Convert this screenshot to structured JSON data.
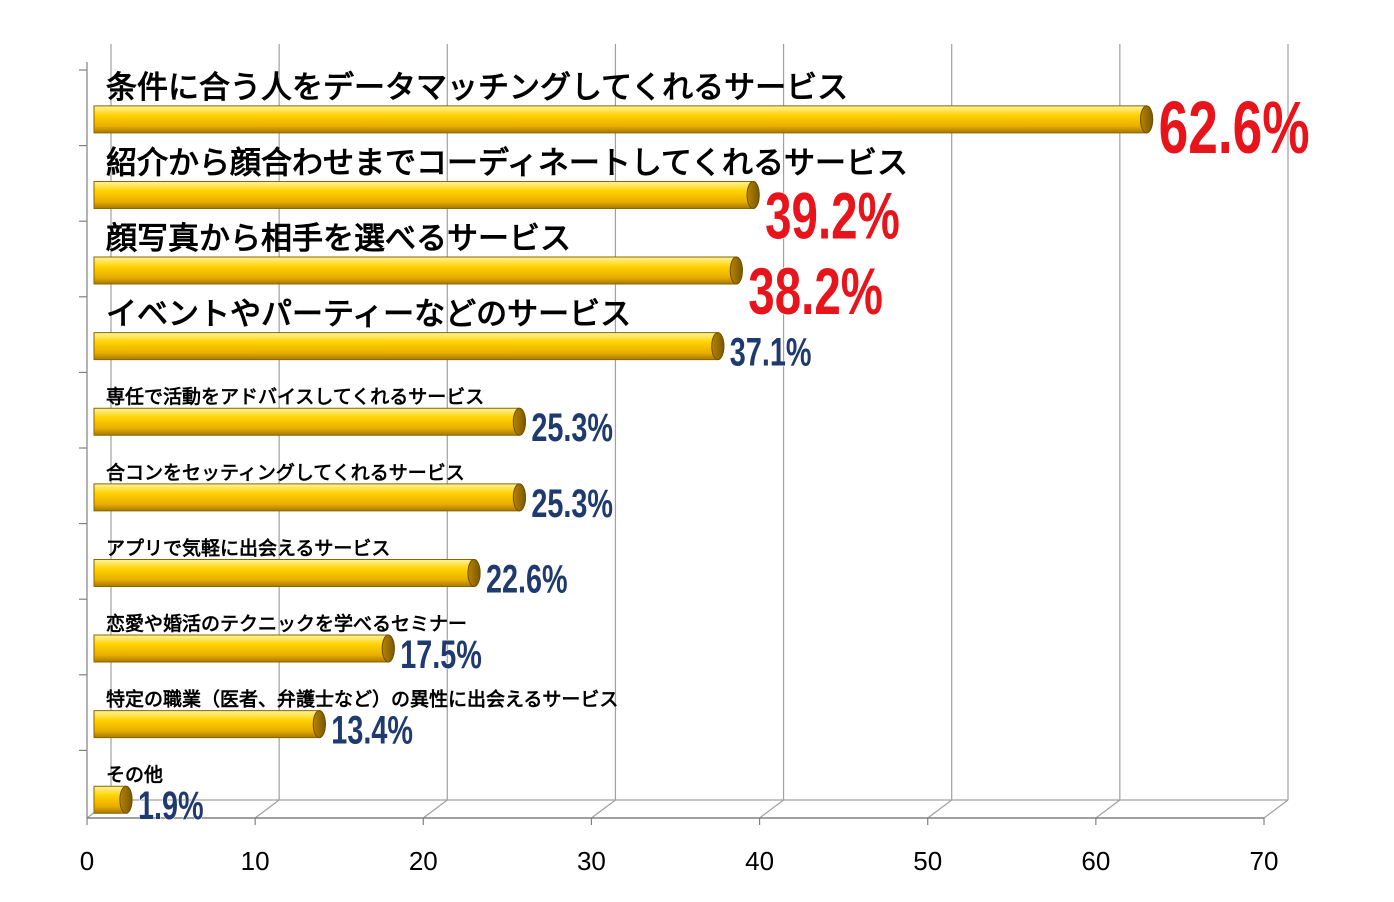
{
  "chart_data": {
    "type": "bar",
    "orientation": "horizontal",
    "title": "",
    "xlabel": "",
    "ylabel": "",
    "xlim": [
      0,
      70
    ],
    "x_ticks": [
      "0",
      "10",
      "20",
      "30",
      "40",
      "50",
      "60",
      "70"
    ],
    "grid": true,
    "legend": "none",
    "categories": [
      "条件に合う人をデータマッチングしてくれるサービス",
      "紹介から顔合わせまでコーディネートしてくれるサービス",
      "顔写真から相手を選べるサービス",
      "イベントやパーティーなどのサービス",
      "専任で活動をアドバイスしてくれるサービス",
      "合コンをセッティングしてくれるサービス",
      "アプリで気軽に出会えるサービス",
      "恋愛や婚活のテクニックを学べるセミナー",
      "特定の職業（医者、弁護士など）の異性に出会えるサービス",
      "その他"
    ],
    "values": [
      62.6,
      39.2,
      38.2,
      37.1,
      25.3,
      25.3,
      22.6,
      17.5,
      13.4,
      1.9
    ],
    "value_labels": [
      "62.6%",
      "39.2%",
      "38.2%",
      "37.1%",
      "25.3%",
      "25.3%",
      "22.6%",
      "17.5%",
      "13.4%",
      "1.9%"
    ],
    "bar_color": "#F2C200",
    "highlight_label_color": "#E8141B",
    "normal_label_color": "#1F3A6E"
  }
}
